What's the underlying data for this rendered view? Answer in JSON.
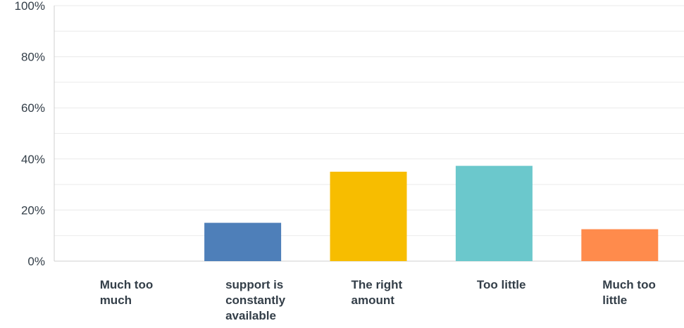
{
  "chart_data": {
    "type": "bar",
    "categories": [
      [
        "Much too",
        "much"
      ],
      [
        "support is",
        "constantly",
        "available"
      ],
      [
        "The right",
        "amount"
      ],
      [
        "Too little"
      ],
      [
        "Much too",
        "little"
      ]
    ],
    "values": [
      0,
      15,
      35,
      37.3,
      12.5
    ],
    "colors": [
      "#4e7fb9",
      "#4e7fb9",
      "#f7bd00",
      "#6bc8cc",
      "#ff8b4c"
    ],
    "yticks": [
      "0%",
      "20%",
      "40%",
      "60%",
      "80%",
      "100%"
    ],
    "ylim": [
      0,
      100
    ],
    "grid": true
  }
}
